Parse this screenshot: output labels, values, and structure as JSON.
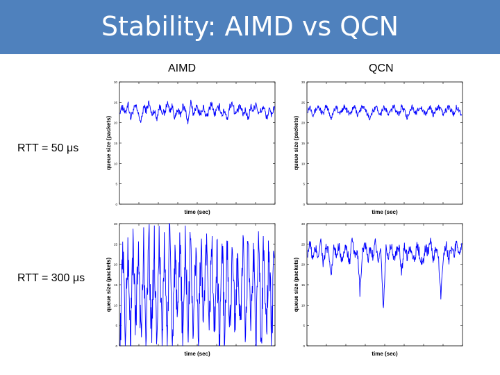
{
  "slide": {
    "title": "Stability: AIMD vs QCN",
    "columns": [
      "AIMD",
      "QCN"
    ],
    "rows": [
      "RTT = 50 μs",
      "RTT = 300 μs"
    ]
  },
  "colors": {
    "title_bar": "#4f81bd",
    "series": "#0000ff"
  },
  "chart_data": [
    {
      "type": "line",
      "id": "aimd-50",
      "xlabel": "time (sec)",
      "ylabel": "queue size (packets)",
      "ylim": [
        0,
        30
      ],
      "yticks": [
        0,
        5,
        10,
        15,
        20,
        25,
        30
      ],
      "xtick_count": 9,
      "grid": false,
      "series": [
        {
          "color": "#0000ff",
          "mean": 23,
          "amplitude": 2,
          "y": [
            23,
            24,
            22,
            25,
            21,
            23,
            24,
            22,
            20,
            24,
            23,
            25,
            22,
            23,
            21,
            24,
            23,
            22,
            25,
            23,
            24,
            21,
            23,
            22,
            24,
            23,
            20,
            25,
            22,
            24,
            23,
            22,
            24,
            21,
            23,
            25,
            22,
            23,
            24,
            22,
            23,
            21,
            24,
            25,
            22,
            23,
            24,
            22,
            23,
            21,
            24,
            23,
            25,
            22,
            23,
            24,
            21,
            23,
            22,
            24
          ]
        }
      ]
    },
    {
      "type": "line",
      "id": "qcn-50",
      "xlabel": "time (sec)",
      "ylabel": "queue size (packets)",
      "ylim": [
        0,
        30
      ],
      "yticks": [
        0,
        5,
        10,
        15,
        20,
        25,
        30
      ],
      "xtick_count": 9,
      "grid": false,
      "series": [
        {
          "color": "#0000ff",
          "mean": 23,
          "amplitude": 1.5,
          "y": [
            23,
            24,
            22,
            23,
            24,
            23,
            22,
            24,
            23,
            21,
            23,
            24,
            22,
            23,
            24,
            23,
            22,
            23,
            24,
            22,
            23,
            24,
            23,
            22,
            21,
            23,
            24,
            23,
            22,
            24,
            23,
            22,
            23,
            24,
            23,
            22,
            24,
            23,
            21,
            23,
            24,
            22,
            23,
            24,
            23,
            22,
            23,
            24,
            22,
            23,
            24,
            23,
            22,
            23,
            24,
            23,
            22,
            24,
            23,
            22
          ]
        }
      ]
    },
    {
      "type": "line",
      "id": "aimd-300",
      "xlabel": "time (sec)",
      "ylabel": "queue size (packets)",
      "ylim": [
        0,
        30
      ],
      "yticks": [
        0,
        5,
        10,
        15,
        20,
        25,
        30
      ],
      "xtick_count": 9,
      "grid": false,
      "series": [
        {
          "color": "#0000ff",
          "mean": 14,
          "amplitude": 14,
          "y": [
            0,
            27,
            1,
            25,
            0,
            28,
            2,
            26,
            0,
            24,
            1,
            29,
            0,
            26,
            3,
            27,
            0,
            25,
            1,
            28,
            0,
            24,
            2,
            27,
            0,
            26,
            1,
            29,
            0,
            25,
            0,
            27,
            2,
            26,
            0,
            28,
            1,
            24,
            0,
            27,
            0,
            25,
            2,
            28,
            0,
            26,
            1,
            27,
            0,
            29,
            0,
            25,
            1,
            26,
            0,
            28,
            2,
            27,
            0,
            26
          ]
        }
      ]
    },
    {
      "type": "line",
      "id": "qcn-300",
      "xlabel": "time (sec)",
      "ylabel": "queue size (packets)",
      "ylim": [
        0,
        30
      ],
      "yticks": [
        0,
        5,
        10,
        15,
        20,
        25,
        30
      ],
      "xtick_count": 9,
      "grid": false,
      "series": [
        {
          "color": "#0000ff",
          "mean": 23,
          "amplitude": 3,
          "y": [
            23,
            25,
            21,
            24,
            22,
            26,
            20,
            24,
            23,
            17,
            24,
            22,
            25,
            21,
            23,
            24,
            20,
            26,
            22,
            24,
            13,
            23,
            25,
            21,
            24,
            22,
            26,
            20,
            23,
            9,
            24,
            22,
            25,
            21,
            23,
            24,
            18,
            25,
            22,
            24,
            23,
            21,
            25,
            22,
            20,
            24,
            23,
            26,
            21,
            24,
            22,
            12,
            23,
            25,
            21,
            24,
            22,
            26,
            23,
            24
          ]
        }
      ]
    }
  ]
}
